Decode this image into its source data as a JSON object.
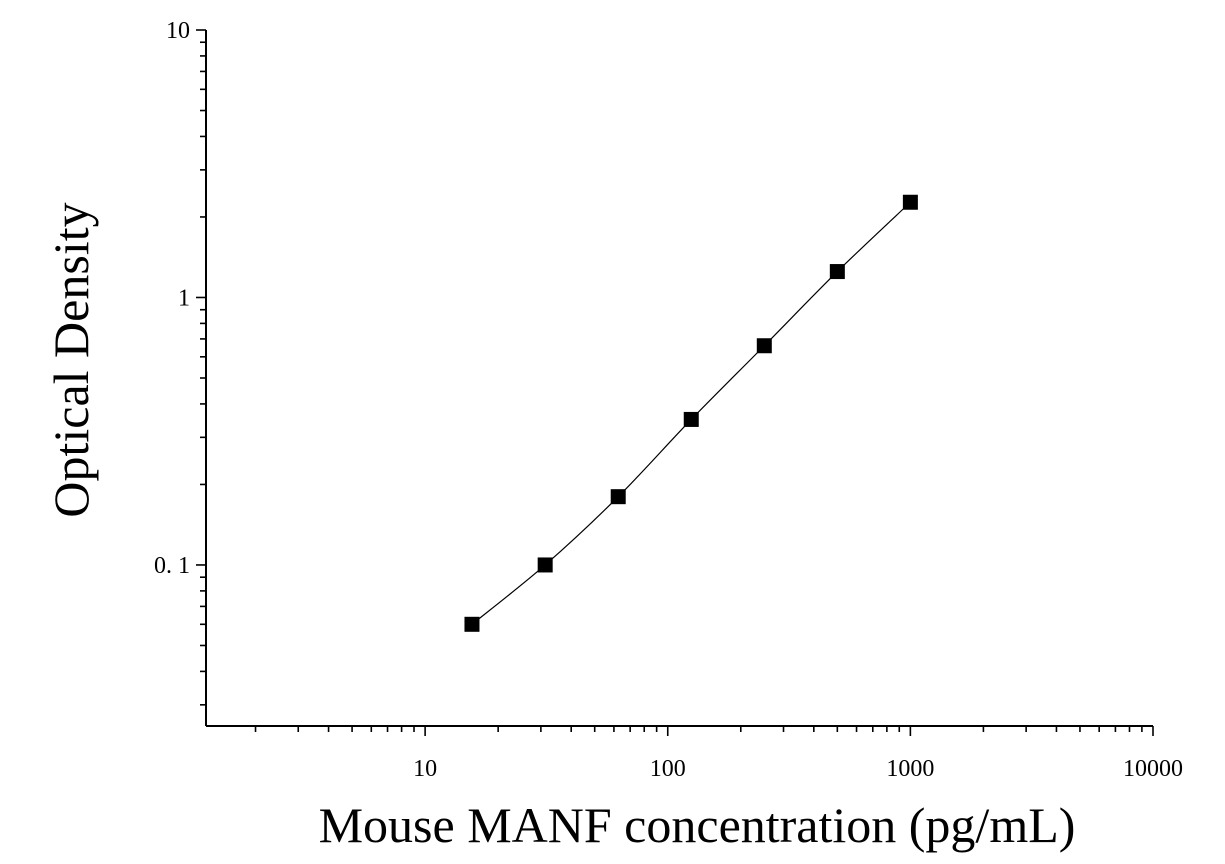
{
  "chart_data": {
    "type": "scatter",
    "x_scale": "log",
    "y_scale": "log",
    "xlabel": "Mouse MANF concentration (pg/mL)",
    "ylabel": "Optical Density",
    "xlim": [
      1.25,
      10000
    ],
    "ylim": [
      0.025,
      10
    ],
    "x_ticks": [
      {
        "value": 10,
        "label": "10"
      },
      {
        "value": 100,
        "label": "100"
      },
      {
        "value": 1000,
        "label": "1000"
      },
      {
        "value": 10000,
        "label": "10000"
      }
    ],
    "y_ticks": [
      {
        "value": 0.1,
        "label": "0. 1"
      },
      {
        "value": 1,
        "label": "1"
      },
      {
        "value": 10,
        "label": "10"
      }
    ],
    "grid": false,
    "series": [
      {
        "x": [
          15.6,
          31.25,
          62.5,
          125,
          250,
          500,
          1000
        ],
        "y": [
          0.06,
          0.1,
          0.18,
          0.35,
          0.66,
          1.25,
          2.27
        ],
        "marker": "square",
        "line": "smooth-fit",
        "color": "#000000"
      }
    ]
  }
}
